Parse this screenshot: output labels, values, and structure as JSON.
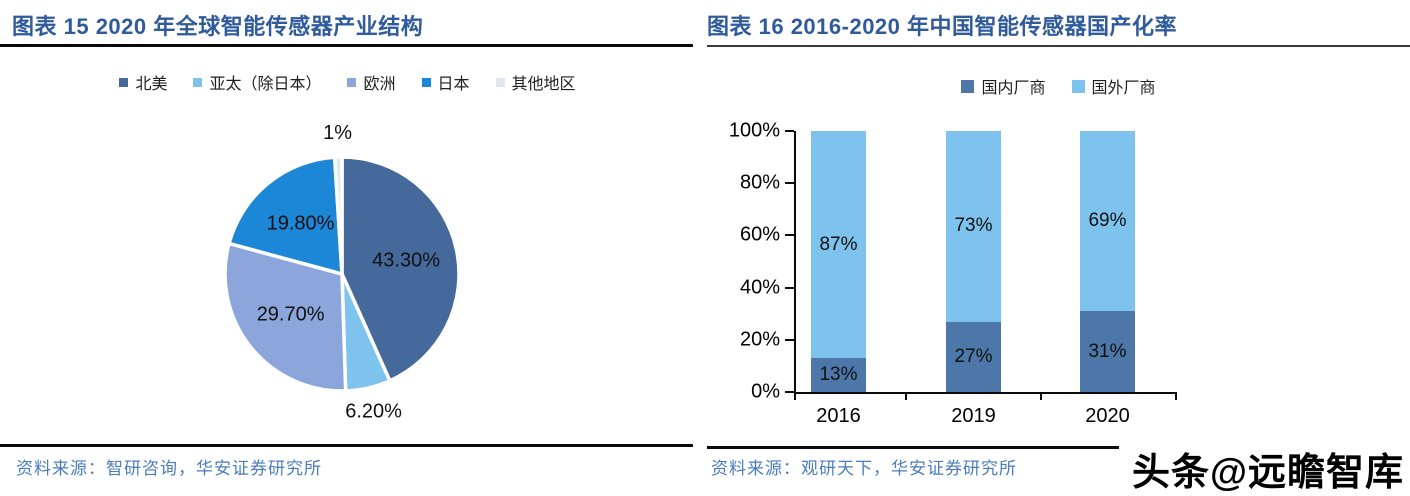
{
  "watermark": "头条@远瞻智库",
  "colors": {
    "title_blue": "#2F5B9D",
    "source_blue": "#4A7CBE",
    "axis_black": "#0a0a0a",
    "label_black": "#111111"
  },
  "chart_data": [
    {
      "type": "pie",
      "title": "图表 15 2020 年全球智能传感器产业结构",
      "labels": [
        "北美",
        "亚太（除日本）",
        "欧洲",
        "日本",
        "其他地区"
      ],
      "values": [
        43.3,
        6.2,
        29.7,
        19.8,
        1.0
      ],
      "data_labels": [
        "43.30%",
        "6.20%",
        "29.70%",
        "19.80%",
        "1%"
      ],
      "colors": [
        "#46699B",
        "#7EC2EE",
        "#8CA6DB",
        "#1C87D6",
        "#DEE7F0"
      ],
      "start_angle_deg": 0,
      "direction": "clockwise",
      "legend_position": "top",
      "source": "资料来源：智研咨询，华安证券研究所"
    },
    {
      "type": "bar",
      "stacked": true,
      "title": "图表 16 2016-2020 年中国智能传感器国产化率",
      "categories": [
        "2016",
        "2019",
        "2020"
      ],
      "series": [
        {
          "name": "国内厂商",
          "values": [
            13,
            27,
            31
          ],
          "labels": [
            "13%",
            "27%",
            "31%"
          ],
          "color": "#4C77A8"
        },
        {
          "name": "国外厂商",
          "values": [
            87,
            73,
            69
          ],
          "labels": [
            "87%",
            "73%",
            "69%"
          ],
          "color": "#7EC2EE"
        }
      ],
      "y_ticks": [
        "0%",
        "20%",
        "40%",
        "60%",
        "80%",
        "100%"
      ],
      "ylim": [
        0,
        100
      ],
      "grid": false,
      "legend_position": "top",
      "source": "资料来源：观研天下，华安证券研究所"
    }
  ]
}
